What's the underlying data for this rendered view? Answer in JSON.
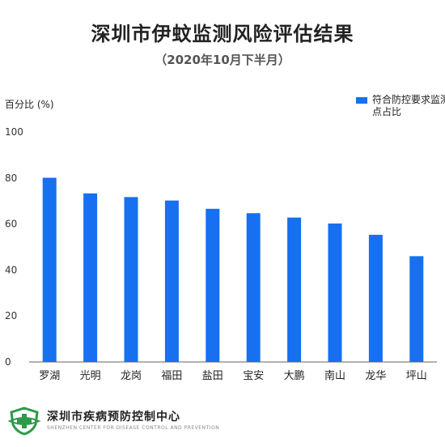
{
  "title": "深圳市伊蚊监测风险评估结果",
  "subtitle": "（2020年10月下半月）",
  "organization": {
    "name_cn": "深圳市疾病预防控制中心",
    "name_en": "SHENZHEN CENTER FOR DISEASE CONTROL AND PREVENTION",
    "logo_icon": "cdc-shield-logo-icon"
  },
  "colors": {
    "bar": "#1670F0",
    "axis": "#666666"
  },
  "chart_data": {
    "type": "bar",
    "ylabel": "百分比 (%)",
    "xlabel": "",
    "ylim": [
      0,
      100
    ],
    "yticks": [
      0,
      20,
      40,
      60,
      80,
      100
    ],
    "grid": false,
    "legend_position": "top-right",
    "categories": [
      "罗湖",
      "光明",
      "龙岗",
      "福田",
      "盐田",
      "宝安",
      "大鹏",
      "南山",
      "龙华",
      "坪山"
    ],
    "series": [
      {
        "name": "符合防控要求监测点占比",
        "values": [
          80.1,
          73.3,
          71.7,
          70.2,
          66.6,
          64.7,
          62.8,
          60.2,
          55.3,
          46.0
        ]
      }
    ]
  }
}
